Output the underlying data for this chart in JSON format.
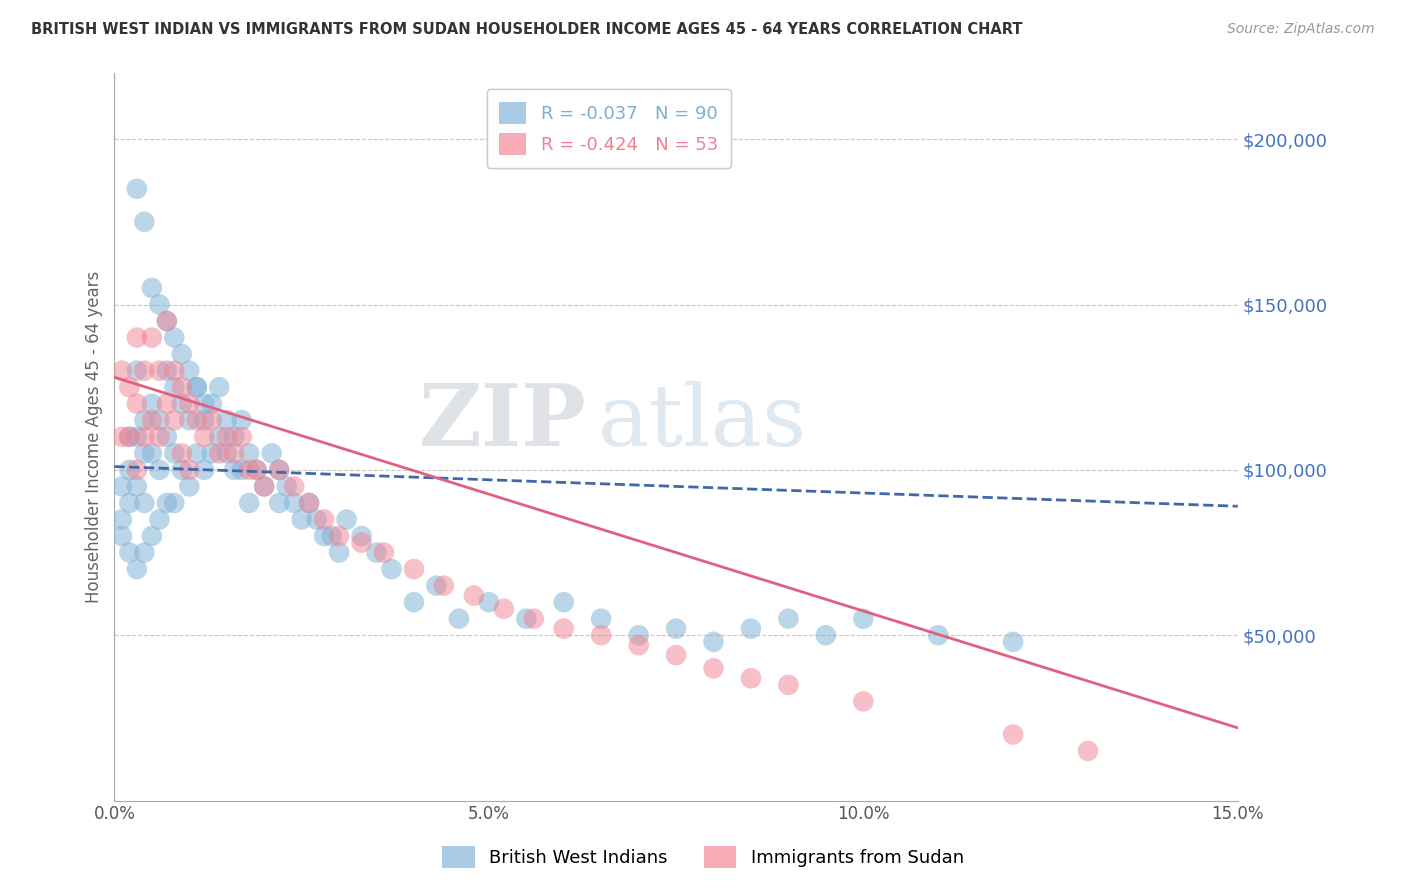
{
  "title": "BRITISH WEST INDIAN VS IMMIGRANTS FROM SUDAN HOUSEHOLDER INCOME AGES 45 - 64 YEARS CORRELATION CHART",
  "source": "Source: ZipAtlas.com",
  "ylabel": "Householder Income Ages 45 - 64 years",
  "xlim": [
    0.0,
    0.15
  ],
  "ylim": [
    0,
    220000
  ],
  "yticks": [
    50000,
    100000,
    150000,
    200000
  ],
  "ytick_labels": [
    "$50,000",
    "$100,000",
    "$150,000",
    "$200,000"
  ],
  "xticks": [
    0.0,
    0.05,
    0.1,
    0.15
  ],
  "xtick_labels": [
    "0.0%",
    "5.0%",
    "10.0%",
    "15.0%"
  ],
  "grid_color": "#c8c8c8",
  "background_color": "#ffffff",
  "watermark_zip": "ZIP",
  "watermark_atlas": "atlas",
  "legend_entries": [
    {
      "label": "R = -0.037   N = 90",
      "color": "#7bafd4"
    },
    {
      "label": "R = -0.424   N = 53",
      "color": "#f08090"
    }
  ],
  "legend_bottom": [
    {
      "label": "British West Indians",
      "color": "#7bafd4"
    },
    {
      "label": "Immigrants from Sudan",
      "color": "#f08090"
    }
  ],
  "series1_color": "#7bafd4",
  "series2_color": "#f08090",
  "series1_line_color": "#4169aa",
  "series2_line_color": "#e06080",
  "title_color": "#333333",
  "axis_label_color": "#666666",
  "ytick_color": "#4472c4",
  "xtick_color": "#555555",
  "series1_x": [
    0.001,
    0.001,
    0.001,
    0.002,
    0.002,
    0.002,
    0.002,
    0.003,
    0.003,
    0.003,
    0.003,
    0.004,
    0.004,
    0.004,
    0.004,
    0.005,
    0.005,
    0.005,
    0.006,
    0.006,
    0.006,
    0.007,
    0.007,
    0.007,
    0.008,
    0.008,
    0.008,
    0.009,
    0.009,
    0.01,
    0.01,
    0.011,
    0.011,
    0.012,
    0.012,
    0.013,
    0.013,
    0.014,
    0.014,
    0.015,
    0.015,
    0.016,
    0.016,
    0.017,
    0.017,
    0.018,
    0.018,
    0.019,
    0.02,
    0.021,
    0.022,
    0.022,
    0.023,
    0.024,
    0.025,
    0.026,
    0.027,
    0.028,
    0.029,
    0.03,
    0.031,
    0.033,
    0.035,
    0.037,
    0.04,
    0.043,
    0.046,
    0.05,
    0.055,
    0.06,
    0.065,
    0.07,
    0.075,
    0.08,
    0.085,
    0.09,
    0.095,
    0.1,
    0.11,
    0.12,
    0.003,
    0.004,
    0.005,
    0.006,
    0.007,
    0.008,
    0.009,
    0.01,
    0.011,
    0.012
  ],
  "series1_y": [
    95000,
    85000,
    80000,
    110000,
    100000,
    90000,
    75000,
    130000,
    110000,
    95000,
    70000,
    115000,
    105000,
    90000,
    75000,
    120000,
    105000,
    80000,
    115000,
    100000,
    85000,
    130000,
    110000,
    90000,
    125000,
    105000,
    90000,
    120000,
    100000,
    115000,
    95000,
    125000,
    105000,
    115000,
    100000,
    120000,
    105000,
    125000,
    110000,
    115000,
    105000,
    110000,
    100000,
    115000,
    100000,
    105000,
    90000,
    100000,
    95000,
    105000,
    100000,
    90000,
    95000,
    90000,
    85000,
    90000,
    85000,
    80000,
    80000,
    75000,
    85000,
    80000,
    75000,
    70000,
    60000,
    65000,
    55000,
    60000,
    55000,
    60000,
    55000,
    50000,
    52000,
    48000,
    52000,
    55000,
    50000,
    55000,
    50000,
    48000,
    185000,
    175000,
    155000,
    150000,
    145000,
    140000,
    135000,
    130000,
    125000,
    120000
  ],
  "series2_x": [
    0.001,
    0.001,
    0.002,
    0.002,
    0.003,
    0.003,
    0.003,
    0.004,
    0.004,
    0.005,
    0.005,
    0.006,
    0.006,
    0.007,
    0.007,
    0.008,
    0.008,
    0.009,
    0.009,
    0.01,
    0.01,
    0.011,
    0.012,
    0.013,
    0.014,
    0.015,
    0.016,
    0.017,
    0.018,
    0.019,
    0.02,
    0.022,
    0.024,
    0.026,
    0.028,
    0.03,
    0.033,
    0.036,
    0.04,
    0.044,
    0.048,
    0.052,
    0.056,
    0.06,
    0.065,
    0.07,
    0.075,
    0.08,
    0.085,
    0.09,
    0.1,
    0.12,
    0.13
  ],
  "series2_y": [
    130000,
    110000,
    125000,
    110000,
    140000,
    120000,
    100000,
    130000,
    110000,
    140000,
    115000,
    130000,
    110000,
    145000,
    120000,
    130000,
    115000,
    125000,
    105000,
    120000,
    100000,
    115000,
    110000,
    115000,
    105000,
    110000,
    105000,
    110000,
    100000,
    100000,
    95000,
    100000,
    95000,
    90000,
    85000,
    80000,
    78000,
    75000,
    70000,
    65000,
    62000,
    58000,
    55000,
    52000,
    50000,
    47000,
    44000,
    40000,
    37000,
    35000,
    30000,
    20000,
    15000
  ],
  "line1_x0": 0.0,
  "line1_y0": 101000,
  "line1_x1": 0.15,
  "line1_y1": 89000,
  "line2_x0": 0.0,
  "line2_y0": 128000,
  "line2_x1": 0.15,
  "line2_y1": 22000
}
